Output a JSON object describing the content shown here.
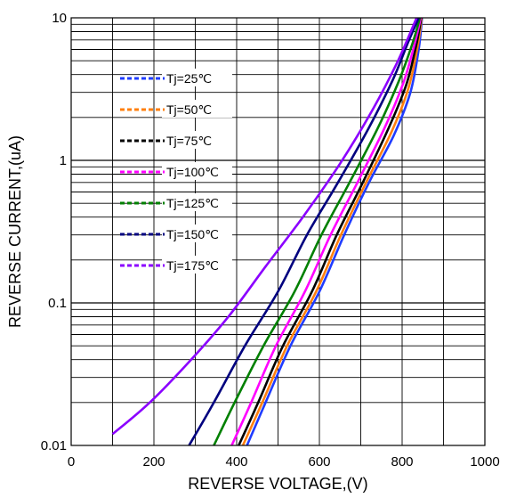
{
  "chart_data": {
    "type": "line",
    "title": "",
    "xlabel": "REVERSE VOLTAGE,(V)",
    "ylabel": "REVERSE CURRENT,(uA)",
    "xlim": [
      0,
      1000
    ],
    "ylim": [
      0.01,
      10
    ],
    "y_scale": "log",
    "x_ticks": [
      "0",
      "200",
      "400",
      "600",
      "800",
      "1000"
    ],
    "y_ticks": [
      "0.01",
      "0.1",
      "1",
      "10"
    ],
    "grid": true,
    "legend_position": "upper-left",
    "series": [
      {
        "name": "Tj=25℃",
        "color": "#1f3cff",
        "x": [
          425,
          470,
          530,
          600,
          660,
          720,
          780,
          820,
          840,
          848
        ],
        "y": [
          0.01,
          0.02,
          0.05,
          0.12,
          0.3,
          0.7,
          1.5,
          3,
          6,
          10
        ]
      },
      {
        "name": "Tj=50℃",
        "color": "#ff7f0e",
        "x": [
          415,
          462,
          522,
          592,
          652,
          713,
          775,
          815,
          837,
          847
        ],
        "y": [
          0.01,
          0.02,
          0.05,
          0.12,
          0.3,
          0.7,
          1.6,
          3.2,
          6.2,
          10
        ]
      },
      {
        "name": "Tj=75℃",
        "color": "#000000",
        "x": [
          405,
          452,
          512,
          582,
          642,
          705,
          768,
          810,
          834,
          846
        ],
        "y": [
          0.01,
          0.02,
          0.05,
          0.12,
          0.3,
          0.7,
          1.7,
          3.4,
          6.4,
          10
        ]
      },
      {
        "name": "Tj=100℃",
        "color": "#ff00ff",
        "x": [
          388,
          435,
          495,
          565,
          627,
          692,
          758,
          803,
          830,
          845
        ],
        "y": [
          0.01,
          0.02,
          0.05,
          0.12,
          0.3,
          0.7,
          1.7,
          3.5,
          6.5,
          10
        ]
      },
      {
        "name": "Tj=125℃",
        "color": "#008000",
        "x": [
          345,
          395,
          465,
          540,
          605,
          673,
          742,
          792,
          825,
          843
        ],
        "y": [
          0.01,
          0.02,
          0.05,
          0.12,
          0.3,
          0.7,
          1.7,
          3.6,
          6.6,
          10
        ]
      },
      {
        "name": "Tj=150℃",
        "color": "#00007f",
        "x": [
          285,
          345,
          420,
          500,
          570,
          645,
          720,
          778,
          815,
          840
        ],
        "y": [
          0.01,
          0.02,
          0.05,
          0.12,
          0.3,
          0.7,
          1.7,
          3.7,
          6.8,
          10
        ]
      },
      {
        "name": "Tj=175℃",
        "color": "#8b00ff",
        "x": [
          100,
          190,
          290,
          380,
          470,
          560,
          650,
          730,
          790,
          835
        ],
        "y": [
          0.012,
          0.02,
          0.04,
          0.08,
          0.18,
          0.4,
          0.95,
          2.3,
          5,
          10
        ]
      }
    ]
  }
}
